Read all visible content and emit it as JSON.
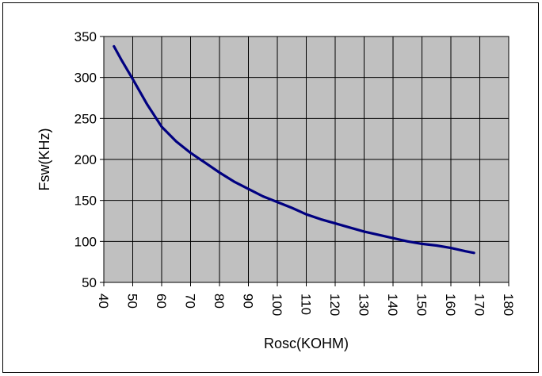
{
  "chart_data": {
    "type": "line",
    "xlabel": "Rosc(KOHM)",
    "ylabel": "Fsw(KHz)",
    "xlim": [
      40,
      180
    ],
    "ylim": [
      50,
      350
    ],
    "x_ticks": [
      40,
      50,
      60,
      70,
      80,
      90,
      100,
      110,
      120,
      130,
      140,
      150,
      160,
      170,
      180
    ],
    "y_ticks": [
      50,
      100,
      150,
      200,
      250,
      300,
      350
    ],
    "grid": true,
    "legend": "none",
    "plot_background": "#c0c0c0",
    "line_color": "#000080",
    "series": [
      {
        "x": [
          43.5,
          46,
          50,
          55,
          60,
          65,
          70,
          75,
          80,
          85,
          90,
          95,
          100,
          105,
          110,
          115,
          120,
          125,
          130,
          135,
          140,
          145,
          150,
          155,
          160,
          165,
          168
        ],
        "y": [
          338,
          322,
          298,
          267,
          240,
          222,
          208,
          196,
          184,
          173,
          164,
          155,
          148,
          141,
          133,
          127,
          122,
          117,
          112,
          108,
          104,
          100,
          97,
          95,
          92,
          88,
          86
        ]
      }
    ]
  }
}
